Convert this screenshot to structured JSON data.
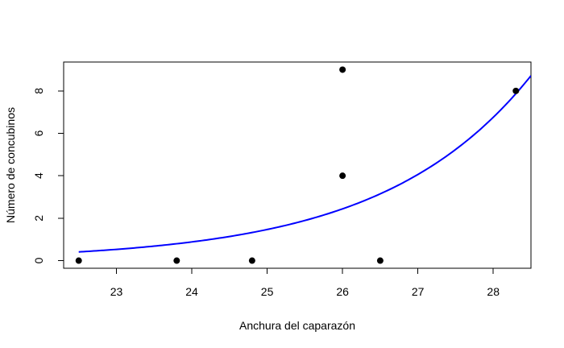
{
  "chart_data": {
    "type": "scatter",
    "title": "",
    "xlabel": "Anchura del caparazón",
    "ylabel": "Número de concubinos",
    "xlim": [
      22.3,
      28.5
    ],
    "ylim": [
      -0.36,
      9.36
    ],
    "x_ticks": [
      23,
      24,
      25,
      26,
      27,
      28
    ],
    "y_ticks": [
      0,
      2,
      4,
      6,
      8
    ],
    "grid": false,
    "legend": "none",
    "series": [
      {
        "type": "scatter",
        "points": [
          {
            "x": 22.5,
            "y": 0
          },
          {
            "x": 23.8,
            "y": 0
          },
          {
            "x": 24.8,
            "y": 0
          },
          {
            "x": 26.0,
            "y": 9
          },
          {
            "x": 26.0,
            "y": 4
          },
          {
            "x": 26.5,
            "y": 0
          },
          {
            "x": 28.3,
            "y": 8
          }
        ],
        "color": "#000000"
      },
      {
        "type": "line",
        "model": "exponential",
        "intercept": -12.35,
        "slope": 0.5093,
        "x_range": [
          22.5,
          28.5
        ],
        "color": "#0000ff"
      }
    ]
  }
}
